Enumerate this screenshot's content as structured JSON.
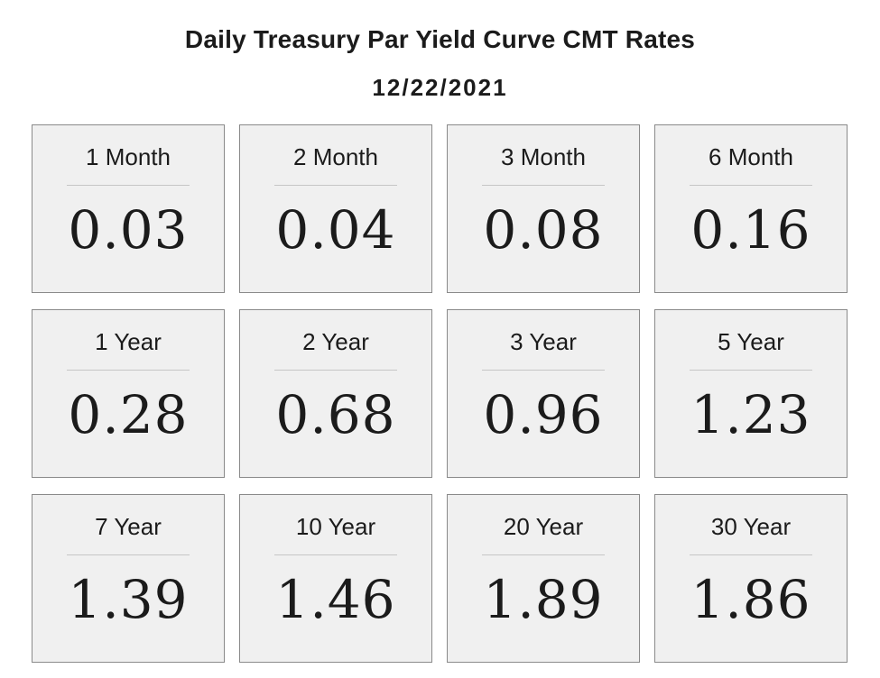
{
  "header": {
    "title": "Daily Treasury Par Yield Curve CMT Rates",
    "date": "12/22/2021"
  },
  "rates": [
    {
      "label": "1 Month",
      "value": "0.03"
    },
    {
      "label": "2 Month",
      "value": "0.04"
    },
    {
      "label": "3 Month",
      "value": "0.08"
    },
    {
      "label": "6 Month",
      "value": "0.16"
    },
    {
      "label": "1 Year",
      "value": "0.28"
    },
    {
      "label": "2 Year",
      "value": "0.68"
    },
    {
      "label": "3 Year",
      "value": "0.96"
    },
    {
      "label": "5 Year",
      "value": "1.23"
    },
    {
      "label": "7 Year",
      "value": "1.39"
    },
    {
      "label": "10 Year",
      "value": "1.46"
    },
    {
      "label": "20 Year",
      "value": "1.89"
    },
    {
      "label": "30 Year",
      "value": "1.86"
    }
  ]
}
